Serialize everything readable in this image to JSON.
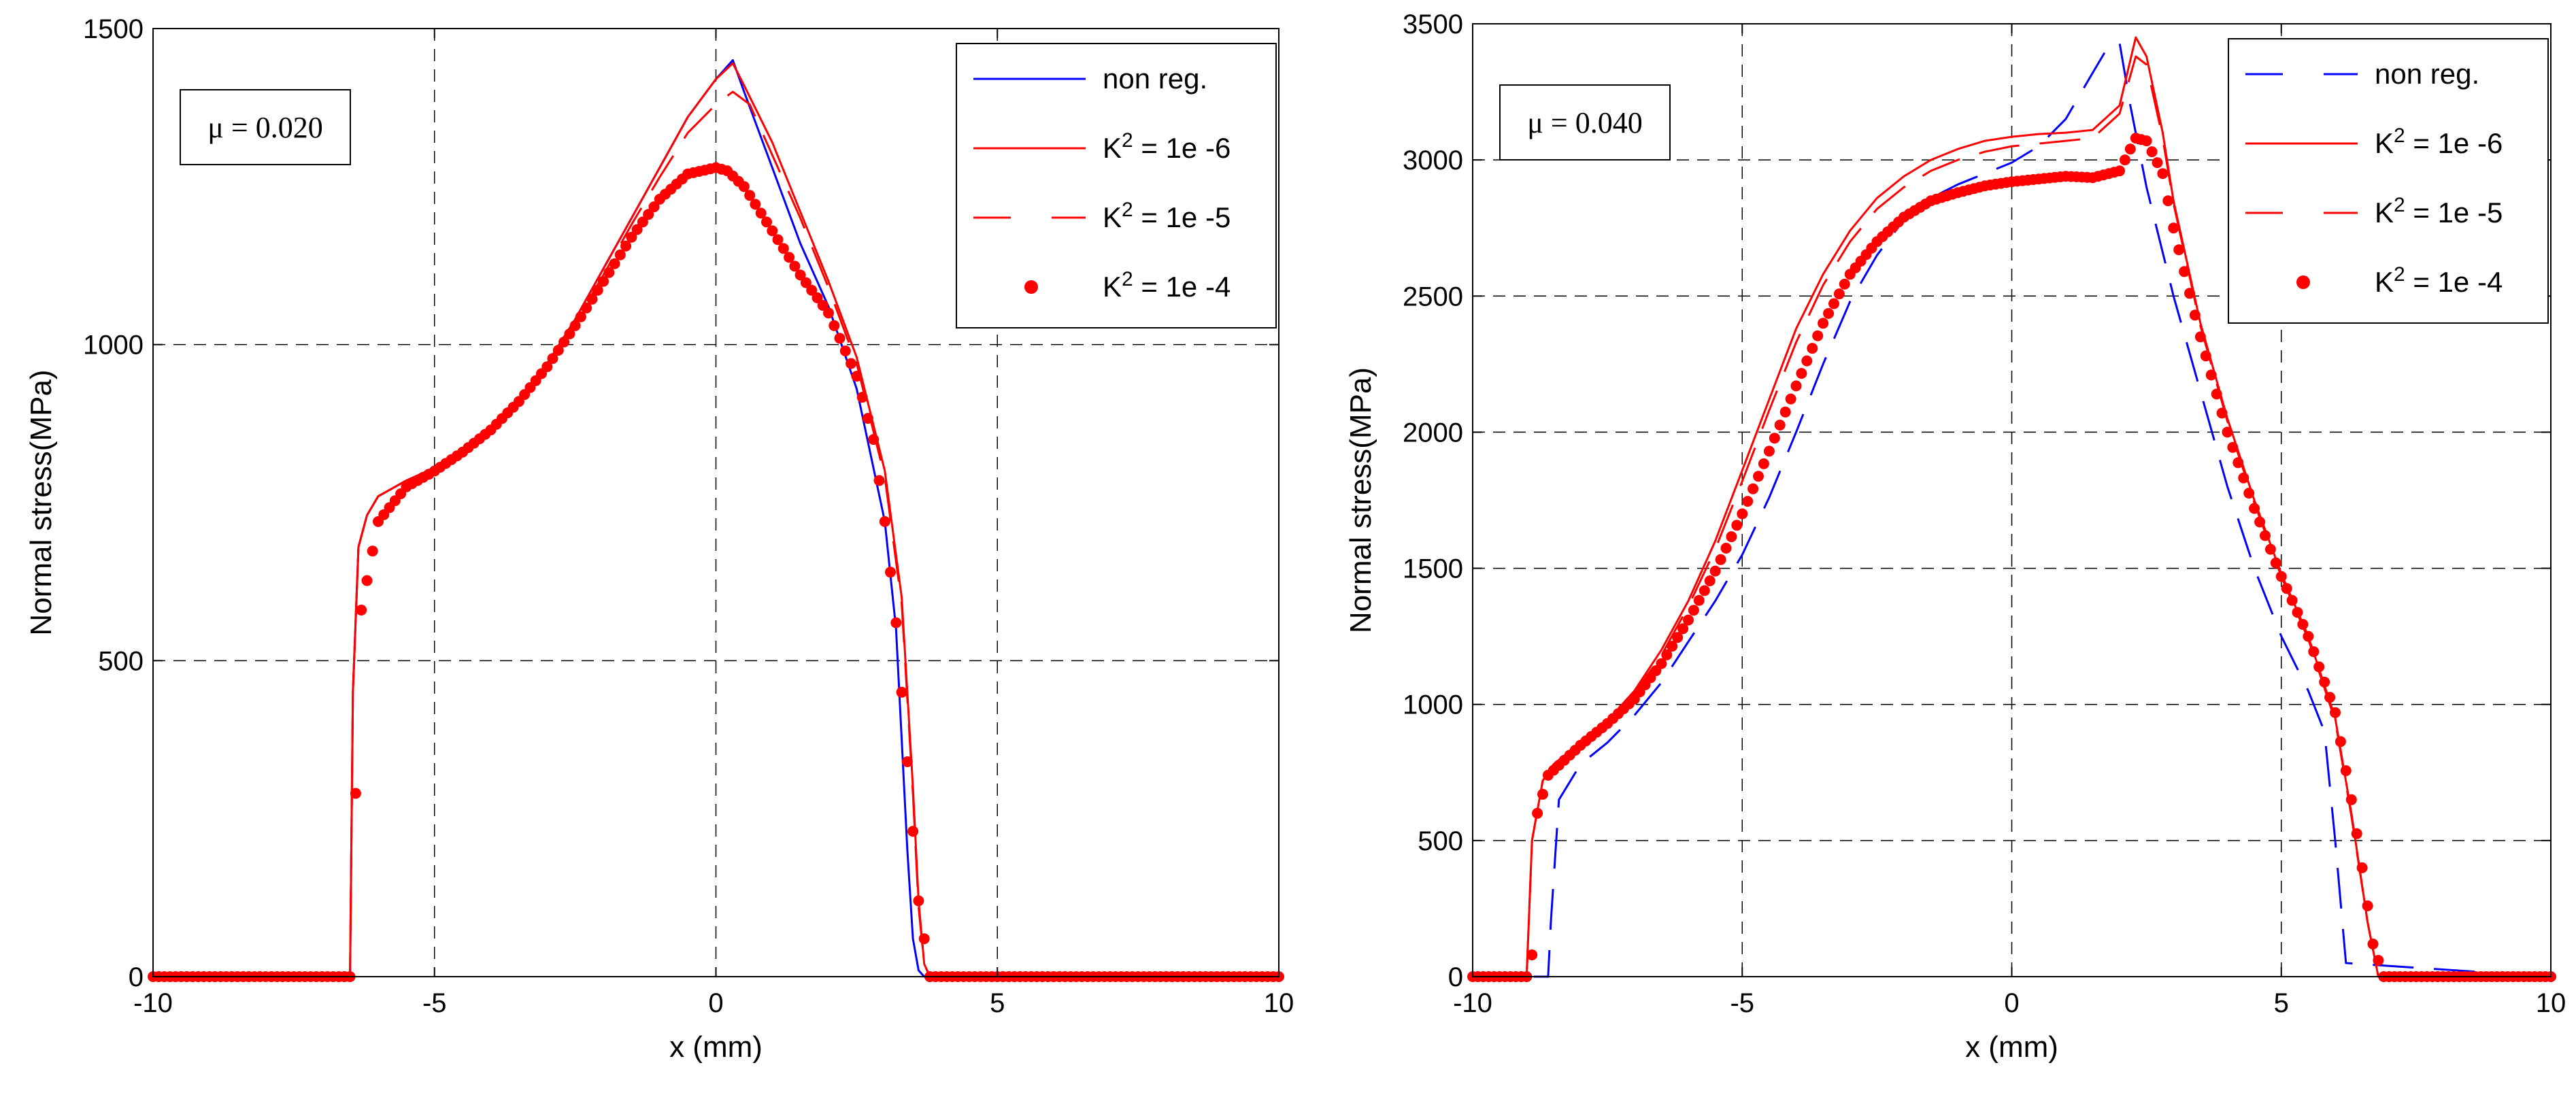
{
  "chart_data": [
    {
      "type": "line",
      "xlabel": "x (mm)",
      "ylabel": "Normal stress(MPa)",
      "xlim": [
        -10,
        10
      ],
      "ylim": [
        0,
        1500
      ],
      "xticks": [
        -10,
        -5,
        0,
        5,
        10
      ],
      "yticks": [
        0,
        500,
        1000,
        1500
      ],
      "grid": true,
      "legend_position": "top-right",
      "annotation": "μ = 0.020",
      "series": [
        {
          "name": "non reg.",
          "color": "#0000ff",
          "style": "solid",
          "x": [
            -10,
            -6.5,
            -6.45,
            -6.35,
            -6.2,
            -6.0,
            -5.5,
            -5.0,
            -4.5,
            -4.0,
            -3.5,
            -3.0,
            -2.5,
            -2.0,
            -1.5,
            -1.0,
            -0.5,
            0.0,
            0.3,
            0.5,
            1.0,
            1.5,
            2.0,
            2.5,
            3.0,
            3.2,
            3.4,
            3.5,
            3.6,
            3.7,
            10
          ],
          "y": [
            0,
            0,
            450,
            680,
            730,
            760,
            785,
            805,
            835,
            870,
            915,
            970,
            1040,
            1120,
            1200,
            1280,
            1360,
            1420,
            1450,
            1400,
            1280,
            1160,
            1060,
            930,
            720,
            550,
            200,
            60,
            10,
            0,
            0
          ]
        },
        {
          "name": "K² = 1e -6",
          "color": "#ff0000",
          "style": "solid",
          "x": [
            -10,
            -6.5,
            -6.45,
            -6.35,
            -6.2,
            -6.0,
            -5.5,
            -5.0,
            -4.5,
            -4.0,
            -3.5,
            -3.0,
            -2.5,
            -2.0,
            -1.5,
            -1.0,
            -0.5,
            0.0,
            0.3,
            0.5,
            1.0,
            1.5,
            2.0,
            2.5,
            3.0,
            3.3,
            3.5,
            3.6,
            3.7,
            3.8,
            10
          ],
          "y": [
            0,
            0,
            450,
            680,
            730,
            760,
            785,
            805,
            835,
            870,
            915,
            970,
            1040,
            1120,
            1200,
            1280,
            1360,
            1420,
            1445,
            1410,
            1320,
            1210,
            1100,
            980,
            800,
            600,
            300,
            120,
            20,
            0,
            0
          ]
        },
        {
          "name": "K² = 1e -5",
          "color": "#ff0000",
          "style": "dashed",
          "x": [
            -10,
            -6.5,
            -6.45,
            -6.35,
            -6.2,
            -6.0,
            -5.5,
            -5.0,
            -4.5,
            -4.0,
            -3.5,
            -3.0,
            -2.5,
            -2.0,
            -1.5,
            -1.0,
            -0.5,
            0.0,
            0.3,
            0.6,
            1.0,
            1.5,
            2.0,
            2.5,
            3.0,
            3.3,
            3.5,
            3.6,
            3.7,
            3.8,
            10
          ],
          "y": [
            0,
            0,
            450,
            680,
            730,
            760,
            785,
            805,
            835,
            870,
            915,
            968,
            1035,
            1110,
            1190,
            1265,
            1335,
            1380,
            1400,
            1380,
            1300,
            1200,
            1090,
            970,
            790,
            590,
            290,
            110,
            20,
            0,
            0
          ]
        },
        {
          "name": "K² = 1e -4",
          "color": "#ff0000",
          "style": "dots",
          "x": [
            -10,
            -6.5,
            -6.3,
            -6.0,
            -5.5,
            -5.0,
            -4.5,
            -4.0,
            -3.5,
            -3.0,
            -2.5,
            -2.0,
            -1.5,
            -1.0,
            -0.5,
            0.0,
            0.2,
            0.5,
            1.0,
            1.5,
            2.0,
            2.5,
            2.8,
            3.0,
            3.2,
            3.4,
            3.6,
            3.8,
            10
          ],
          "y": [
            0,
            0,
            580,
            720,
            775,
            800,
            830,
            865,
            910,
            965,
            1030,
            1100,
            1170,
            1230,
            1270,
            1280,
            1275,
            1250,
            1180,
            1110,
            1050,
            950,
            850,
            720,
            560,
            340,
            120,
            0,
            0
          ]
        }
      ]
    },
    {
      "type": "line",
      "xlabel": "x (mm)",
      "ylabel": "Normal stress(MPa)",
      "xlim": [
        -10,
        10
      ],
      "ylim": [
        0,
        3500
      ],
      "xticks": [
        -10,
        -5,
        0,
        5,
        10
      ],
      "yticks": [
        0,
        500,
        1000,
        1500,
        2000,
        2500,
        3000,
        3500
      ],
      "grid": true,
      "legend_position": "top-right",
      "annotation": "μ = 0.040",
      "series": [
        {
          "name": "non reg.",
          "color": "#0000ff",
          "style": "dashed",
          "x": [
            -10,
            -8.6,
            -8.55,
            -8.4,
            -8.0,
            -7.5,
            -7.0,
            -6.5,
            -6.0,
            -5.5,
            -5.0,
            -4.5,
            -4.0,
            -3.5,
            -3.0,
            -2.5,
            -2.0,
            -1.5,
            -1.0,
            -0.5,
            0.0,
            0.5,
            1.0,
            1.5,
            1.8,
            2.0,
            2.2,
            2.5,
            3.0,
            3.5,
            4.0,
            4.5,
            5.0,
            5.5,
            5.8,
            6.0,
            6.2,
            10
          ],
          "y": [
            0,
            0,
            200,
            650,
            780,
            860,
            960,
            1080,
            1230,
            1380,
            1550,
            1760,
            2000,
            2250,
            2480,
            2650,
            2780,
            2860,
            2910,
            2950,
            2990,
            3050,
            3150,
            3320,
            3420,
            3430,
            3200,
            2900,
            2500,
            2150,
            1800,
            1500,
            1250,
            1050,
            900,
            500,
            50,
            0
          ]
        },
        {
          "name": "K² = 1e -6",
          "color": "#ff0000",
          "style": "solid",
          "x": [
            -10,
            -9.0,
            -8.9,
            -8.7,
            -8.5,
            -8.0,
            -7.5,
            -7.0,
            -6.5,
            -6.0,
            -5.5,
            -5.0,
            -4.5,
            -4.0,
            -3.5,
            -3.0,
            -2.5,
            -2.0,
            -1.5,
            -1.0,
            -0.5,
            0.0,
            0.5,
            1.0,
            1.5,
            2.0,
            2.3,
            2.5,
            2.8,
            3.0,
            3.5,
            4.0,
            4.5,
            5.0,
            5.5,
            6.0,
            6.3,
            6.6,
            6.8,
            10
          ],
          "y": [
            0,
            0,
            500,
            720,
            780,
            860,
            940,
            1050,
            1200,
            1380,
            1600,
            1860,
            2120,
            2380,
            2580,
            2740,
            2860,
            2940,
            3000,
            3040,
            3070,
            3085,
            3095,
            3100,
            3110,
            3200,
            3450,
            3380,
            3100,
            2850,
            2400,
            2050,
            1750,
            1480,
            1250,
            950,
            600,
            200,
            0,
            0
          ]
        },
        {
          "name": "K² = 1e -5",
          "color": "#ff0000",
          "style": "dashed",
          "x": [
            -10,
            -9.0,
            -8.9,
            -8.7,
            -8.5,
            -8.0,
            -7.5,
            -7.0,
            -6.5,
            -6.0,
            -5.5,
            -5.0,
            -4.5,
            -4.0,
            -3.5,
            -3.0,
            -2.5,
            -2.0,
            -1.5,
            -1.0,
            -0.5,
            0.0,
            0.5,
            1.0,
            1.5,
            2.0,
            2.3,
            2.5,
            2.8,
            3.0,
            3.5,
            4.0,
            4.5,
            5.0,
            5.5,
            6.0,
            6.3,
            6.6,
            6.8,
            10
          ],
          "y": [
            0,
            0,
            500,
            720,
            780,
            860,
            940,
            1040,
            1180,
            1360,
            1570,
            1820,
            2080,
            2330,
            2540,
            2700,
            2820,
            2900,
            2960,
            3000,
            3030,
            3050,
            3060,
            3070,
            3080,
            3170,
            3380,
            3350,
            3080,
            2840,
            2390,
            2040,
            1740,
            1470,
            1240,
            940,
            590,
            200,
            0,
            0
          ]
        },
        {
          "name": "K² = 1e -4",
          "color": "#ff0000",
          "style": "dots",
          "x": [
            -10,
            -9.0,
            -8.9,
            -8.8,
            -8.6,
            -8.0,
            -7.5,
            -7.0,
            -6.5,
            -6.0,
            -5.5,
            -5.0,
            -4.5,
            -4.0,
            -3.5,
            -3.0,
            -2.5,
            -2.0,
            -1.5,
            -1.0,
            -0.5,
            0.0,
            0.5,
            1.0,
            1.5,
            2.0,
            2.3,
            2.5,
            2.8,
            3.0,
            3.5,
            4.0,
            4.5,
            5.0,
            5.5,
            6.0,
            6.3,
            6.5,
            6.7,
            6.9,
            10
          ],
          "y": [
            0,
            0,
            80,
            600,
            740,
            850,
            930,
            1020,
            1150,
            1310,
            1490,
            1700,
            1930,
            2170,
            2400,
            2580,
            2700,
            2790,
            2850,
            2880,
            2905,
            2920,
            2930,
            2940,
            2935,
            2960,
            3080,
            3070,
            2950,
            2750,
            2350,
            2000,
            1720,
            1470,
            1250,
            970,
            650,
            400,
            120,
            0,
            0
          ]
        }
      ]
    }
  ]
}
